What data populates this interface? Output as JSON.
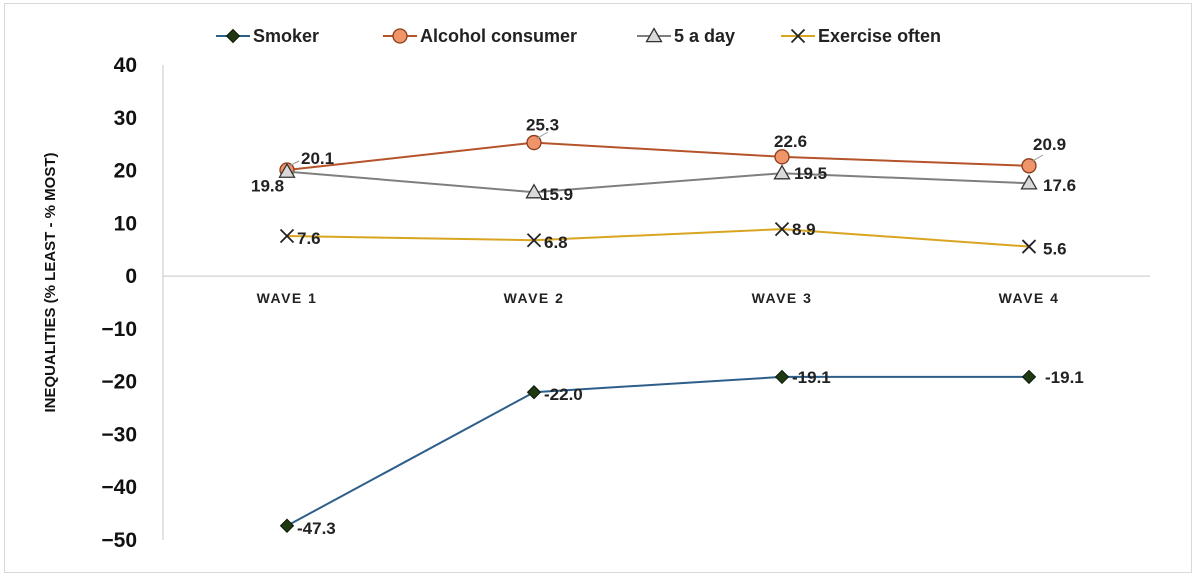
{
  "chart_data": {
    "type": "line",
    "title": "",
    "xlabel": "",
    "ylabel": "INEQUALITIES  (% LEAST - % MOST)",
    "categories": [
      "WAVE 1",
      "WAVE 2",
      "WAVE 3",
      "WAVE 4"
    ],
    "ylim": [
      -50,
      40
    ],
    "yticks": [
      "40",
      "30",
      "20",
      "10",
      "0",
      "−10",
      "−20",
      "−30",
      "−40",
      "−50"
    ],
    "ytick_values": [
      40,
      30,
      20,
      10,
      0,
      -10,
      -20,
      -30,
      -40,
      -50
    ],
    "legend_position": "top",
    "grid": false,
    "series": [
      {
        "name": "Smoker",
        "values": [
          -47.3,
          -22.0,
          -19.1,
          -19.1
        ],
        "labels": [
          "-47.3",
          "-22.0",
          "-19.1",
          "-19.1"
        ],
        "color": "#2e5f8a",
        "marker": "diamond",
        "marker_color": "#1f3a12"
      },
      {
        "name": "Alcohol consumer",
        "values": [
          20.1,
          25.3,
          22.6,
          20.9
        ],
        "labels": [
          "20.1",
          "25.3",
          "22.6",
          "20.9"
        ],
        "color": "#b5532a",
        "marker": "circle",
        "marker_color": "#f0956a"
      },
      {
        "name": "5 a day",
        "values": [
          19.8,
          15.9,
          19.5,
          17.6
        ],
        "labels": [
          "19.8",
          "15.9",
          "19.5",
          "17.6"
        ],
        "color": "#7f7f7f",
        "marker": "triangle",
        "marker_color": "#d9d9d9"
      },
      {
        "name": "Exercise often",
        "values": [
          7.6,
          6.8,
          8.9,
          5.6
        ],
        "labels": [
          "7.6",
          "6.8",
          "8.9",
          "5.6"
        ],
        "color": "#d9a521",
        "marker": "x",
        "marker_color": "#222222"
      }
    ]
  }
}
